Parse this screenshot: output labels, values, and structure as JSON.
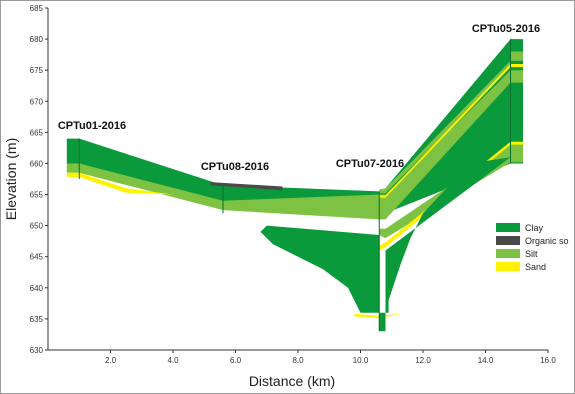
{
  "chart_data": {
    "type": "area",
    "title": "",
    "xlabel": "Distance (km)",
    "ylabel": "Elevation (m)",
    "xlim": [
      0,
      16
    ],
    "ylim": [
      630,
      685
    ],
    "x_ticks": [
      "2.0",
      "4.0",
      "6.0",
      "8.0",
      "10.0",
      "12.0",
      "14.0",
      "16.0"
    ],
    "y_ticks": [
      "630",
      "635",
      "640",
      "645",
      "650",
      "655",
      "660",
      "665",
      "670",
      "675",
      "680",
      "685"
    ],
    "grid": false,
    "legend_position": "right",
    "legend": [
      {
        "name": "Clay",
        "color": "#0a9a3c"
      },
      {
        "name": "Organic so",
        "color": "#4a4a4a"
      },
      {
        "name": "Silt",
        "color": "#7dc242"
      },
      {
        "name": "Sand",
        "color": "#fff200"
      }
    ],
    "boreholes": [
      {
        "name": "CPTu01-2016",
        "x": 1.0,
        "top": 664,
        "bottom": 657.5
      },
      {
        "name": "CPTu08-2016",
        "x": 5.6,
        "top": 656.5,
        "bottom": 652
      },
      {
        "name": "CPTu07-2016",
        "x": 10.6,
        "top": 655.5,
        "bottom": 633
      },
      {
        "name": "CPTu05-2016",
        "x": 14.8,
        "top": 680,
        "bottom": 660
      }
    ],
    "layers": [
      {
        "material": "Clay",
        "polygon": [
          [
            0.6,
            664
          ],
          [
            1.0,
            664
          ],
          [
            5.6,
            656.5
          ],
          [
            10.6,
            655.5
          ],
          [
            10.8,
            656
          ],
          [
            14.8,
            680
          ],
          [
            15.2,
            680
          ],
          [
            15.2,
            660
          ],
          [
            14.8,
            660
          ],
          [
            10.8,
            652
          ],
          [
            10.6,
            652
          ],
          [
            5.6,
            653
          ],
          [
            1.0,
            660
          ],
          [
            0.6,
            660
          ]
        ]
      },
      {
        "material": "Organic so",
        "polygon": [
          [
            5.2,
            657
          ],
          [
            7.5,
            656.3
          ],
          [
            7.5,
            655.7
          ],
          [
            5.2,
            656.5
          ]
        ]
      },
      {
        "material": "Silt",
        "polygon": [
          [
            0.6,
            660
          ],
          [
            1.0,
            660
          ],
          [
            5.6,
            654
          ],
          [
            10.6,
            655
          ],
          [
            10.8,
            655
          ],
          [
            14.8,
            675
          ],
          [
            15.2,
            675
          ],
          [
            15.2,
            673
          ],
          [
            14.8,
            673
          ],
          [
            10.8,
            651
          ],
          [
            10.6,
            651
          ],
          [
            5.6,
            652.5
          ],
          [
            1.0,
            658.5
          ],
          [
            0.6,
            658.5
          ]
        ]
      },
      {
        "material": "Silt",
        "polygon": [
          [
            14.8,
            678
          ],
          [
            15.2,
            678
          ],
          [
            15.2,
            676.5
          ],
          [
            14.8,
            676.5
          ],
          [
            10.8,
            656
          ],
          [
            10.6,
            655.8
          ],
          [
            10.6,
            655.2
          ],
          [
            10.8,
            655.2
          ],
          [
            14.8,
            675.5
          ]
        ]
      },
      {
        "material": "Silt",
        "polygon": [
          [
            14.8,
            663
          ],
          [
            15.2,
            663
          ],
          [
            15.2,
            660.2
          ],
          [
            14.8,
            660.2
          ],
          [
            10.8,
            648
          ],
          [
            10.6,
            648.5
          ],
          [
            10.6,
            649.5
          ],
          [
            10.8,
            649.5
          ]
        ]
      },
      {
        "material": "Sand",
        "polygon": [
          [
            0.6,
            658.5
          ],
          [
            1.0,
            658.5
          ],
          [
            2.5,
            656
          ],
          [
            4.0,
            655
          ],
          [
            2.5,
            655.3
          ],
          [
            1.0,
            657.8
          ],
          [
            0.6,
            657.8
          ]
        ]
      },
      {
        "material": "Sand",
        "polygon": [
          [
            14.8,
            663.5
          ],
          [
            15.2,
            663.5
          ],
          [
            15.2,
            663
          ],
          [
            14.8,
            663
          ],
          [
            10.8,
            646.5
          ],
          [
            10.6,
            646
          ],
          [
            10.6,
            646.8
          ],
          [
            10.8,
            647.3
          ]
        ]
      },
      {
        "material": "Sand",
        "polygon": [
          [
            7.2,
            649
          ],
          [
            10.6,
            647.5
          ],
          [
            10.6,
            646.7
          ],
          [
            7.2,
            648.2
          ]
        ]
      },
      {
        "material": "Sand",
        "polygon": [
          [
            14.8,
            676
          ],
          [
            15.2,
            676
          ],
          [
            15.2,
            675.5
          ],
          [
            14.8,
            675.5
          ],
          [
            10.8,
            654.5
          ],
          [
            10.6,
            654.5
          ],
          [
            10.6,
            654.9
          ],
          [
            10.8,
            654.9
          ]
        ]
      },
      {
        "material": "Sand",
        "polygon": [
          [
            9.8,
            635.8
          ],
          [
            10.6,
            635.5
          ],
          [
            11.3,
            635.8
          ],
          [
            10.6,
            635.1
          ],
          [
            9.8,
            635.4
          ]
        ]
      },
      {
        "material": "Clay",
        "polygon": [
          [
            7.0,
            650
          ],
          [
            10.6,
            648.5
          ],
          [
            10.6,
            633
          ],
          [
            10.8,
            633
          ],
          [
            10.8,
            646
          ],
          [
            14.8,
            661
          ],
          [
            13.5,
            660
          ],
          [
            12.0,
            652
          ],
          [
            11.6,
            648
          ],
          [
            11.3,
            644
          ],
          [
            10.9,
            638
          ],
          [
            10.9,
            636
          ],
          [
            10.0,
            636
          ],
          [
            9.6,
            640
          ],
          [
            8.8,
            643
          ],
          [
            8.0,
            645
          ],
          [
            7.2,
            647
          ],
          [
            6.8,
            649
          ]
        ]
      }
    ]
  }
}
